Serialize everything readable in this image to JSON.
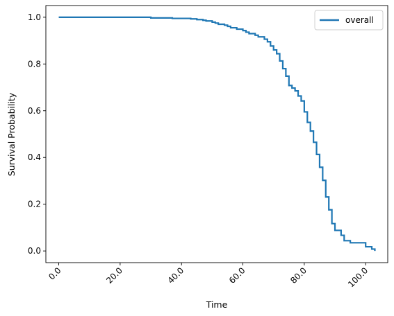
{
  "chart_data": {
    "type": "line",
    "title": "",
    "xlabel": "Time",
    "ylabel": "Survival Probability",
    "xlim": [
      -4.2,
      107.2
    ],
    "ylim": [
      -0.05,
      1.05
    ],
    "x_ticks": [
      0,
      20,
      40,
      60,
      80,
      100
    ],
    "x_tick_labels": [
      "0.0",
      "20.0",
      "40.0",
      "60.0",
      "80.0",
      "100.0"
    ],
    "y_ticks": [
      0.0,
      0.2,
      0.4,
      0.6,
      0.8,
      1.0
    ],
    "y_tick_labels": [
      "0.0",
      "0.2",
      "0.4",
      "0.6",
      "0.8",
      "1.0"
    ],
    "grid": false,
    "legend_position": "top-right",
    "series": [
      {
        "name": "overall",
        "color": "#1f77b4",
        "step": "post",
        "x": [
          0,
          30,
          37,
          43,
          45,
          47,
          48,
          50,
          51,
          52,
          54,
          55,
          56,
          58,
          60,
          61,
          62,
          64,
          65,
          67,
          68,
          69,
          70,
          71,
          72,
          73,
          74,
          75,
          76,
          77,
          78,
          79,
          80,
          81,
          82,
          83,
          84,
          85,
          86,
          87,
          88,
          89,
          90,
          92,
          93,
          95,
          100,
          102,
          103
        ],
        "y": [
          1.0,
          0.997,
          0.995,
          0.993,
          0.99,
          0.987,
          0.984,
          0.979,
          0.975,
          0.97,
          0.966,
          0.961,
          0.955,
          0.949,
          0.943,
          0.936,
          0.93,
          0.923,
          0.916,
          0.906,
          0.895,
          0.877,
          0.86,
          0.844,
          0.813,
          0.78,
          0.748,
          0.708,
          0.697,
          0.685,
          0.663,
          0.642,
          0.595,
          0.55,
          0.513,
          0.465,
          0.413,
          0.358,
          0.302,
          0.231,
          0.176,
          0.117,
          0.088,
          0.067,
          0.044,
          0.035,
          0.018,
          0.008,
          0.0
        ]
      }
    ]
  }
}
